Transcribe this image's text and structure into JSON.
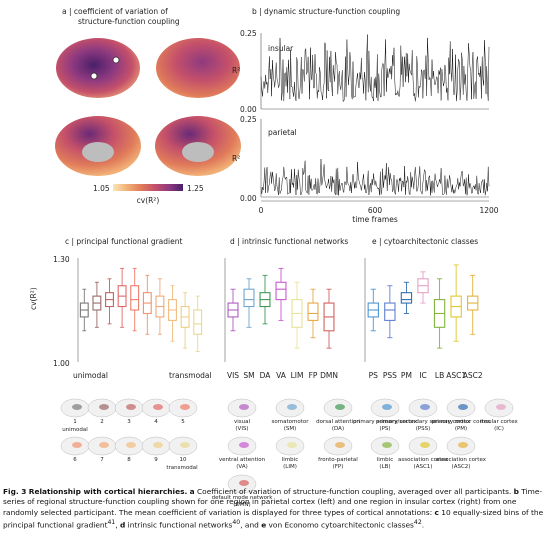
{
  "panel_a": {
    "title_line1": "a | coefficient of variation of",
    "title_line2": "structure-function coupling",
    "colorbar_min": "1.05",
    "colorbar_max": "1.25",
    "colorbar_label": "cv(R²)",
    "colormap": [
      "#fbe6b8",
      "#f2b177",
      "#e07b5a",
      "#c4506a",
      "#8f3a80",
      "#4a1f6a"
    ]
  },
  "panel_b": {
    "title": "b | dynamic structure-function coupling",
    "xlabel": "time frames",
    "xticks": [
      "0",
      "600",
      "1200"
    ],
    "rows": [
      {
        "label": "insular",
        "ylabel": "R²",
        "yticks": [
          "0.25",
          "0.00"
        ]
      },
      {
        "label": "parietal",
        "ylabel": "R²",
        "yticks": [
          "0.25",
          "0.00"
        ]
      }
    ]
  },
  "panel_c": {
    "title": "c | principal functional gradient",
    "ylabel": "cv(R²)",
    "yticks": [
      "1.30",
      "1.00"
    ],
    "xlabel_left": "unimodal",
    "xlabel_right": "transmodal",
    "bin_labels": [
      "1",
      "2",
      "3",
      "4",
      "5",
      "6",
      "7",
      "8",
      "9",
      "10"
    ],
    "bin_label_unimodal": "unimodal",
    "bin_label_transmodal": "transmodal"
  },
  "panel_d": {
    "title": "d | intrinsic functional networks",
    "categories": [
      "VIS",
      "SM",
      "DA",
      "VA",
      "LIM",
      "FP",
      "DMN"
    ],
    "legend": [
      {
        "name": "visual",
        "abbr": "(VIS)"
      },
      {
        "name": "somatomotor",
        "abbr": "(SM)"
      },
      {
        "name": "dorsal attention",
        "abbr": "(DA)"
      },
      {
        "name": "ventral attention",
        "abbr": "(VA)"
      },
      {
        "name": "limbic",
        "abbr": "(LIM)"
      },
      {
        "name": "fronto-parietal",
        "abbr": "(FP)"
      },
      {
        "name": "default mode network",
        "abbr": "(DMN)"
      }
    ]
  },
  "panel_e": {
    "title": "e | cytoarchitectonic classes",
    "categories": [
      "PS",
      "PSS",
      "PM",
      "IC",
      "LB",
      "ASC1",
      "ASC2"
    ],
    "legend": [
      {
        "name": "primary sensory cortex",
        "abbr": "(PS)"
      },
      {
        "name": "primary/secondary sensory cortex",
        "abbr": "(PSS)"
      },
      {
        "name": "primary motor cortex",
        "abbr": "(PM)"
      },
      {
        "name": "insular cortex",
        "abbr": "(IC)"
      },
      {
        "name": "limbic",
        "abbr": "(LB)"
      },
      {
        "name": "association cortex",
        "abbr": "(ASC1)"
      },
      {
        "name": "association cortex",
        "abbr": "(ASC2)"
      }
    ]
  },
  "chart_data": [
    {
      "type": "line",
      "title": "insular",
      "ylabel": "R²",
      "xlabel": "time frames",
      "xlim": [
        0,
        1200
      ],
      "ylim": [
        0,
        0.25
      ],
      "series": [
        {
          "values_description_range": [
            0.02,
            0.22
          ]
        }
      ]
    },
    {
      "type": "line",
      "title": "parietal",
      "ylabel": "R²",
      "xlabel": "time frames",
      "xlim": [
        0,
        1200
      ],
      "ylim": [
        0,
        0.25
      ],
      "series": [
        {
          "values_description_range": [
            0.0,
            0.12
          ]
        }
      ]
    },
    {
      "type": "box",
      "ylabel": "cv(R²)",
      "ylim": [
        1.0,
        1.3
      ],
      "categories": [
        "1",
        "2",
        "3",
        "4",
        "5",
        "6",
        "7",
        "8",
        "9",
        "10"
      ],
      "boxes": [
        {
          "q1": 1.13,
          "median": 1.15,
          "q3": 1.17,
          "lo": 1.09,
          "hi": 1.21,
          "color": "#7a7a7a"
        },
        {
          "q1": 1.15,
          "median": 1.17,
          "q3": 1.19,
          "lo": 1.1,
          "hi": 1.23,
          "color": "#9a6a6a"
        },
        {
          "q1": 1.16,
          "median": 1.18,
          "q3": 1.2,
          "lo": 1.11,
          "hi": 1.24,
          "color": "#c06464"
        },
        {
          "q1": 1.16,
          "median": 1.19,
          "q3": 1.22,
          "lo": 1.1,
          "hi": 1.27,
          "color": "#e06a6a"
        },
        {
          "q1": 1.15,
          "median": 1.18,
          "q3": 1.22,
          "lo": 1.09,
          "hi": 1.27,
          "color": "#ef7b6a"
        },
        {
          "q1": 1.14,
          "median": 1.17,
          "q3": 1.2,
          "lo": 1.08,
          "hi": 1.25,
          "color": "#f2916f"
        },
        {
          "q1": 1.13,
          "median": 1.16,
          "q3": 1.19,
          "lo": 1.08,
          "hi": 1.24,
          "color": "#f3a878"
        },
        {
          "q1": 1.12,
          "median": 1.15,
          "q3": 1.18,
          "lo": 1.06,
          "hi": 1.22,
          "color": "#f2bd80"
        },
        {
          "q1": 1.1,
          "median": 1.13,
          "q3": 1.16,
          "lo": 1.04,
          "hi": 1.2,
          "color": "#eccf88"
        },
        {
          "q1": 1.08,
          "median": 1.11,
          "q3": 1.15,
          "lo": 1.03,
          "hi": 1.19,
          "color": "#e8d890"
        }
      ]
    },
    {
      "type": "box",
      "categories": [
        "VIS",
        "SM",
        "DA",
        "VA",
        "LIM",
        "FP",
        "DMN"
      ],
      "boxes": [
        {
          "q1": 1.13,
          "median": 1.15,
          "q3": 1.17,
          "lo": 1.09,
          "hi": 1.21,
          "color": "#b05cbf"
        },
        {
          "q1": 1.16,
          "median": 1.18,
          "q3": 1.21,
          "lo": 1.1,
          "hi": 1.24,
          "color": "#6fa6cf"
        },
        {
          "q1": 1.16,
          "median": 1.18,
          "q3": 1.2,
          "lo": 1.11,
          "hi": 1.25,
          "color": "#3f9a56"
        },
        {
          "q1": 1.18,
          "median": 1.21,
          "q3": 1.23,
          "lo": 1.12,
          "hi": 1.27,
          "color": "#c95ad0"
        },
        {
          "q1": 1.1,
          "median": 1.14,
          "q3": 1.18,
          "lo": 1.04,
          "hi": 1.23,
          "color": "#e6e39a"
        },
        {
          "q1": 1.12,
          "median": 1.14,
          "q3": 1.17,
          "lo": 1.07,
          "hi": 1.21,
          "color": "#e7a84a"
        },
        {
          "q1": 1.09,
          "median": 1.13,
          "q3": 1.17,
          "lo": 1.04,
          "hi": 1.21,
          "color": "#d46060"
        }
      ]
    },
    {
      "type": "box",
      "categories": [
        "PS",
        "PSS",
        "PM",
        "IC",
        "LB",
        "ASC1",
        "ASC2"
      ],
      "boxes": [
        {
          "q1": 1.13,
          "median": 1.15,
          "q3": 1.17,
          "lo": 1.09,
          "hi": 1.21,
          "color": "#4e96d2"
        },
        {
          "q1": 1.12,
          "median": 1.15,
          "q3": 1.17,
          "lo": 1.07,
          "hi": 1.22,
          "color": "#5f7fd0"
        },
        {
          "q1": 1.17,
          "median": 1.18,
          "q3": 1.2,
          "lo": 1.14,
          "hi": 1.23,
          "color": "#2f6fb3"
        },
        {
          "q1": 1.2,
          "median": 1.22,
          "q3": 1.24,
          "lo": 1.17,
          "hi": 1.26,
          "color": "#e6a0c4"
        },
        {
          "q1": 1.1,
          "median": 1.14,
          "q3": 1.18,
          "lo": 1.04,
          "hi": 1.24,
          "color": "#84b33e"
        },
        {
          "q1": 1.13,
          "median": 1.16,
          "q3": 1.19,
          "lo": 1.06,
          "hi": 1.28,
          "color": "#e0c62d"
        },
        {
          "q1": 1.15,
          "median": 1.17,
          "q3": 1.19,
          "lo": 1.08,
          "hi": 1.25,
          "color": "#e6b23a"
        }
      ]
    }
  ],
  "caption": {
    "fig": "Fig. 3",
    "title": "Relationship with cortical hierarchies.",
    "a": "a",
    "text_a": " Coefficient of variation of structure-function coupling, averaged over all participants. ",
    "b": "b",
    "text_b": " Time-series of regional structure-function coupling shown for one region in parietal cortex (left) and one region in insular cortex (right) from one randomly selected participant. The mean coefficient of variation is displayed for three types of cortical annotations: ",
    "c": "c",
    "text_c": " 10 equally-sized bins of the principal functional gradient",
    "ref_c": "41",
    "sep1": ", ",
    "d": "d",
    "text_d": " intrinsic functional networks",
    "ref_d": "40",
    "sep2": ", and ",
    "e": "e",
    "text_e": " von Economo cytoarchitectonic classes",
    "ref_e": "42",
    "end": "."
  }
}
